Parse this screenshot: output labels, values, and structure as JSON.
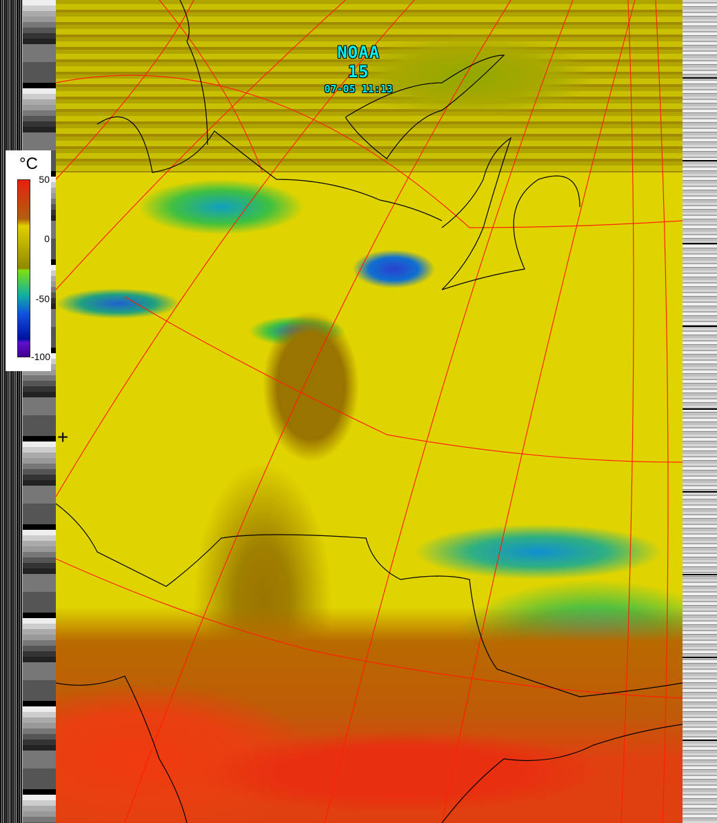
{
  "satellite": "NOAA 15",
  "timestamp": "07-05 11:13",
  "legend": {
    "unit": "°C",
    "ticks": [
      "50",
      "0",
      "-50",
      "-100"
    ],
    "palette": [
      "#e82010",
      "#b06010",
      "#e0d000",
      "#908800",
      "#80e010",
      "#10b0a0",
      "#1050e0",
      "#400090"
    ]
  },
  "overlay_colors": {
    "graticule": "#ff2000",
    "coastline": "#000000"
  }
}
